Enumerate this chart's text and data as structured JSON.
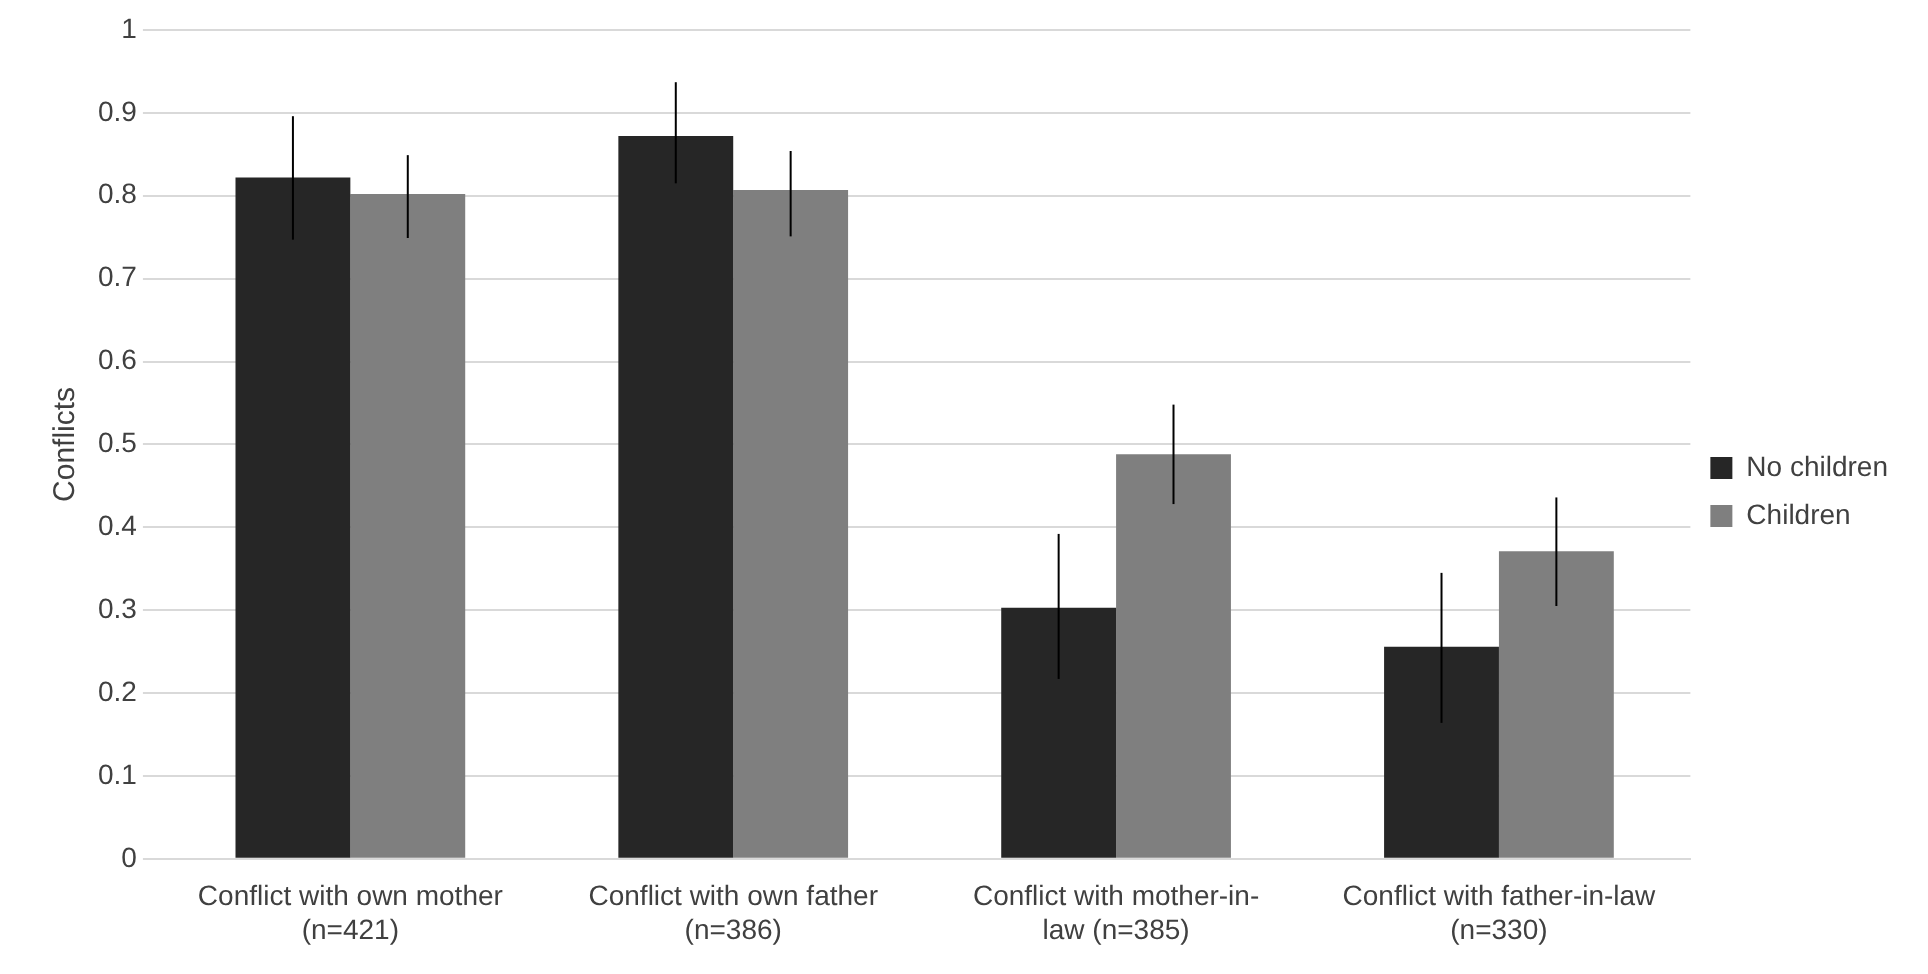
{
  "chart_data": {
    "type": "bar",
    "ylabel": "Conflicts",
    "categories": [
      "Conflict with own mother (n=421)",
      "Conflict with own father (n=386)",
      "Conflict with mother-in-law (n=385)",
      "Conflict with father-in-law (n=330)"
    ],
    "series": [
      {
        "name": "No children",
        "color": "#262626",
        "values": [
          0.822,
          0.872,
          0.303,
          0.256
        ],
        "errors": [
          [
            0.747,
            0.896
          ],
          [
            0.815,
            0.937
          ],
          [
            0.217,
            0.392
          ],
          [
            0.164,
            0.345
          ]
        ]
      },
      {
        "name": "Children",
        "color": "#7f7f7f",
        "values": [
          0.802,
          0.807,
          0.488,
          0.371
        ],
        "errors": [
          [
            0.749,
            0.849
          ],
          [
            0.751,
            0.854
          ],
          [
            0.428,
            0.548
          ],
          [
            0.305,
            0.436
          ]
        ]
      }
    ],
    "ylim": [
      0,
      1
    ],
    "yticks": [
      0,
      0.1,
      0.2,
      0.3,
      0.4,
      0.5,
      0.6,
      0.7,
      0.8,
      0.9,
      1
    ],
    "grid": "y",
    "legend": "right"
  }
}
